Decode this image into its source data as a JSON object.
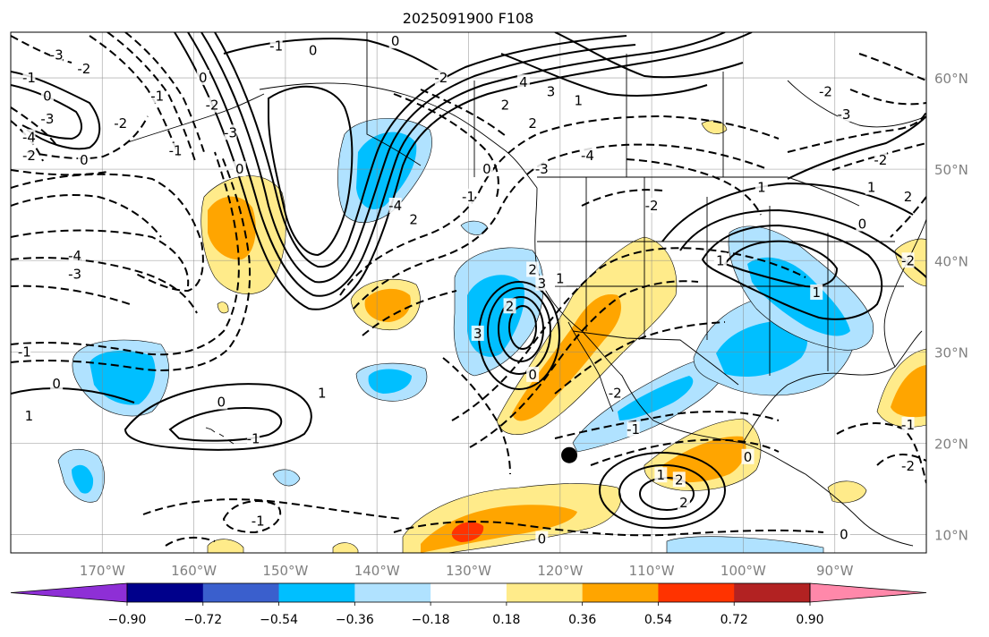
{
  "title": "2025091900 F108",
  "map": {
    "lon_range": [
      -180,
      -80
    ],
    "lat_range": [
      8,
      65
    ],
    "lon_ticks": [
      "170°W",
      "160°W",
      "150°W",
      "140°W",
      "130°W",
      "120°W",
      "110°W",
      "100°W",
      "90°W"
    ],
    "lat_ticks": [
      "60°N",
      "50°N",
      "40°N",
      "30°N",
      "20°N",
      "10°N"
    ],
    "grid": true,
    "marker": {
      "name": "storm-center-dot",
      "lon": -119,
      "lat": 18.7
    }
  },
  "contour_labels": [
    {
      "text": "-3",
      "lon": -175,
      "lat": 62.5
    },
    {
      "text": "-2",
      "lon": -172,
      "lat": 61
    },
    {
      "text": "-1",
      "lon": -178,
      "lat": 60
    },
    {
      "text": "0",
      "lon": -176,
      "lat": 58
    },
    {
      "text": "-3",
      "lon": -176,
      "lat": 55.5
    },
    {
      "text": "-4",
      "lon": -178,
      "lat": 53.5
    },
    {
      "text": "0",
      "lon": -172,
      "lat": 51
    },
    {
      "text": "-2",
      "lon": -178,
      "lat": 51.5
    },
    {
      "text": "-1",
      "lon": -164,
      "lat": 58
    },
    {
      "text": "-2",
      "lon": -168,
      "lat": 55
    },
    {
      "text": "-2",
      "lon": -158,
      "lat": 57
    },
    {
      "text": "-3",
      "lon": -156,
      "lat": 54
    },
    {
      "text": "0",
      "lon": -159,
      "lat": 60
    },
    {
      "text": "-1",
      "lon": -162,
      "lat": 52
    },
    {
      "text": "-4",
      "lon": -173,
      "lat": 40.5
    },
    {
      "text": "-3",
      "lon": -173,
      "lat": 38.5
    },
    {
      "text": "0",
      "lon": -155,
      "lat": 50
    },
    {
      "text": "-1",
      "lon": -151,
      "lat": 63.5
    },
    {
      "text": "0",
      "lon": -147,
      "lat": 63
    },
    {
      "text": "0",
      "lon": -138,
      "lat": 64
    },
    {
      "text": "-2",
      "lon": -133,
      "lat": 60
    },
    {
      "text": "4",
      "lon": -124,
      "lat": 59.5
    },
    {
      "text": "3",
      "lon": -121,
      "lat": 58.5
    },
    {
      "text": "2",
      "lon": -126,
      "lat": 57
    },
    {
      "text": "1",
      "lon": -118,
      "lat": 57.5
    },
    {
      "text": "2",
      "lon": -123,
      "lat": 55
    },
    {
      "text": "-4",
      "lon": -117,
      "lat": 51.5
    },
    {
      "text": "-3",
      "lon": -122,
      "lat": 50
    },
    {
      "text": "0",
      "lon": -128,
      "lat": 50
    },
    {
      "text": "-1",
      "lon": -130,
      "lat": 47
    },
    {
      "text": "-2",
      "lon": -110,
      "lat": 46
    },
    {
      "text": "-4",
      "lon": -138,
      "lat": 46
    },
    {
      "text": "2",
      "lon": -136,
      "lat": 44.5
    },
    {
      "text": "2",
      "lon": -123,
      "lat": 39
    },
    {
      "text": "3",
      "lon": -122,
      "lat": 37.5
    },
    {
      "text": "2",
      "lon": -125.5,
      "lat": 35
    },
    {
      "text": "3",
      "lon": -129,
      "lat": 32
    },
    {
      "text": "0",
      "lon": -123,
      "lat": 27.5
    },
    {
      "text": "-2",
      "lon": -114,
      "lat": 25.5
    },
    {
      "text": "-1",
      "lon": -112,
      "lat": 21.5
    },
    {
      "text": "1",
      "lon": -102.5,
      "lat": 40
    },
    {
      "text": "1",
      "lon": -120,
      "lat": 38
    },
    {
      "text": "1",
      "lon": -98,
      "lat": 48
    },
    {
      "text": "1",
      "lon": -92,
      "lat": 36.5
    },
    {
      "text": "1",
      "lon": -86,
      "lat": 48
    },
    {
      "text": "0",
      "lon": -87,
      "lat": 44
    },
    {
      "text": "-2",
      "lon": -91,
      "lat": 58.5
    },
    {
      "text": "-2",
      "lon": -85,
      "lat": 51
    },
    {
      "text": "2",
      "lon": -82,
      "lat": 47
    },
    {
      "text": "-3",
      "lon": -89,
      "lat": 56
    },
    {
      "text": "-2",
      "lon": -82,
      "lat": 40
    },
    {
      "text": "-2",
      "lon": -82,
      "lat": 17.5
    },
    {
      "text": "-1",
      "lon": -82,
      "lat": 22
    },
    {
      "text": "0",
      "lon": -89,
      "lat": 10
    },
    {
      "text": "0",
      "lon": -99.5,
      "lat": 18.5
    },
    {
      "text": "1",
      "lon": -109,
      "lat": 16.5
    },
    {
      "text": "2",
      "lon": -107,
      "lat": 16
    },
    {
      "text": "2",
      "lon": -106.5,
      "lat": 13.5
    },
    {
      "text": "-1",
      "lon": -178.5,
      "lat": 30
    },
    {
      "text": "0",
      "lon": -175,
      "lat": 26.5
    },
    {
      "text": "1",
      "lon": -178,
      "lat": 23
    },
    {
      "text": "0",
      "lon": -157,
      "lat": 24.5
    },
    {
      "text": "1",
      "lon": -146,
      "lat": 25.5
    },
    {
      "text": "-1",
      "lon": -153.5,
      "lat": 20.5
    },
    {
      "text": "-1",
      "lon": -153,
      "lat": 11.5
    },
    {
      "text": "0",
      "lon": -122,
      "lat": 9.5
    }
  ],
  "colorbar": {
    "labels": [
      "−0.90",
      "−0.72",
      "−0.54",
      "−0.36",
      "−0.18",
      "0.18",
      "0.36",
      "0.54",
      "0.72",
      "0.90"
    ],
    "bounds": [
      -0.9,
      -0.72,
      -0.54,
      -0.36,
      -0.18,
      0.18,
      0.36,
      0.54,
      0.72,
      0.9
    ],
    "colors": [
      "#8e2fd6",
      "#00008b",
      "#3a5fcd",
      "#00bfff",
      "#b0e2ff",
      "#ffffff",
      "#ffeb8a",
      "#ffa500",
      "#ff3300",
      "#b22222",
      "#ff88aa"
    ],
    "extend": "both"
  },
  "colors": {
    "pos_light": "#ffeb8a",
    "pos_mid": "#ffa500",
    "pos_strong": "#ff3300",
    "neg_light": "#b0e2ff",
    "neg_mid": "#00bfff"
  }
}
